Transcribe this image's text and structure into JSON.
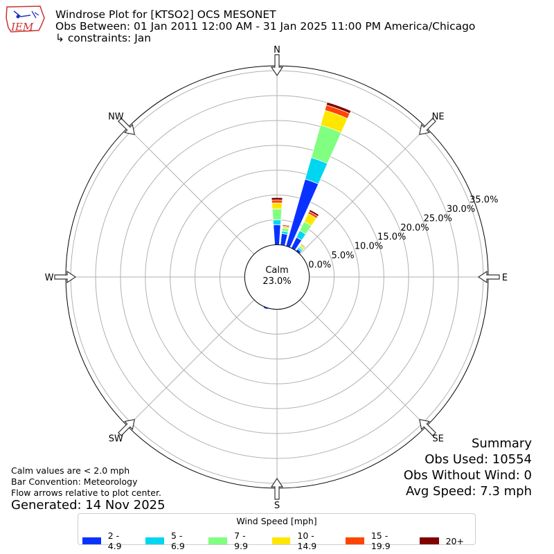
{
  "header": {
    "logo_text": "IEM",
    "title": "Windrose Plot for [KTSO2] OCS MESONET",
    "obs_between": "Obs Between: 01 Jan 2011 12:00 AM - 31 Jan 2025 11:00 PM America/Chicago",
    "constraints": "↳ constraints: Jan"
  },
  "calm": {
    "label": "Calm",
    "value": "23.0%"
  },
  "directions": [
    "N",
    "NE",
    "E",
    "SE",
    "S",
    "SW",
    "W",
    "NW"
  ],
  "notes": {
    "line1": "Calm values are < 2.0 mph",
    "line2": "Bar Convention: Meteorology",
    "line3": "Flow arrows relative to plot center.",
    "generated": "Generated: 14 Nov 2025"
  },
  "summary": {
    "title": "Summary",
    "obs_used": "Obs Used: 10554",
    "obs_without_wind": "Obs Without Wind: 0",
    "avg_speed": "Avg Speed: 7.3 mph"
  },
  "legend": {
    "title": "Wind Speed [mph]",
    "items": [
      {
        "label": "2 - 4.9",
        "color": "#0a32ff"
      },
      {
        "label": "5 - 6.9",
        "color": "#00d6f0"
      },
      {
        "label": "7 - 9.9",
        "color": "#80ff80"
      },
      {
        "label": "10 - 14.9",
        "color": "#ffe600"
      },
      {
        "label": "15 - 19.9",
        "color": "#ff4500"
      },
      {
        "label": "20+",
        "color": "#800000"
      }
    ]
  },
  "chart_data": {
    "type": "windrose",
    "radial_ticks": [
      "0.0%",
      "5.0%",
      "10.0%",
      "15.0%",
      "20.0%",
      "25.0%",
      "30.0%",
      "35.0%"
    ],
    "rmax": 36,
    "calm_offset": 6.5,
    "bar_width_deg": 8,
    "series_names": [
      "2 - 4.9",
      "5 - 6.9",
      "7 - 9.9",
      "10 - 14.9",
      "15 - 19.9",
      "20+"
    ],
    "bars": [
      {
        "direction_deg": 0,
        "values": [
          4.0,
          1.0,
          2.2,
          1.2,
          0.6,
          0.5
        ]
      },
      {
        "direction_deg": 10,
        "values": [
          2.3,
          0.5,
          0.6,
          0.3,
          0.2,
          0.2
        ]
      },
      {
        "direction_deg": 20,
        "values": [
          14.0,
          4.5,
          6.8,
          3.1,
          1.1,
          0.6
        ]
      },
      {
        "direction_deg": 30,
        "values": [
          2.4,
          1.5,
          2.0,
          1.8,
          0.5,
          0.4
        ]
      },
      {
        "direction_deg": 40,
        "values": [
          0.5,
          0.4,
          0.4,
          0.3,
          0.2,
          0.1
        ]
      },
      {
        "direction_deg": 200,
        "values": [
          0.3,
          0.0,
          0.0,
          0.0,
          0.0,
          0.0
        ]
      }
    ]
  }
}
